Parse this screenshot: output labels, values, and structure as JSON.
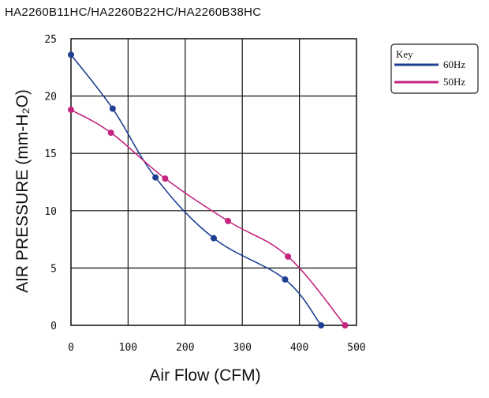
{
  "chart_data": {
    "type": "line",
    "title": "HA2260B11HC/HA2260B22HC/HA2260B38HC",
    "xlabel": "Air Flow (CFM)",
    "ylabel": "AIR PRESSURE (mm-H₂O)",
    "xlim": [
      0,
      500
    ],
    "ylim": [
      0,
      25
    ],
    "x_ticks": [
      "0",
      "100",
      "200",
      "300",
      "400",
      "500"
    ],
    "y_ticks": [
      "0",
      "5",
      "10",
      "15",
      "20",
      "25"
    ],
    "grid": true,
    "legend": {
      "title": "Key",
      "position": "top-right"
    },
    "series": [
      {
        "name": "60Hz",
        "color": "#1f3f93",
        "points": [
          [
            0,
            23.6
          ],
          [
            73,
            18.9
          ],
          [
            148,
            12.9
          ],
          [
            250,
            7.6
          ],
          [
            375,
            4.0
          ],
          [
            438,
            0.0
          ]
        ]
      },
      {
        "name": "50Hz",
        "color": "#c4267f",
        "points": [
          [
            0,
            18.8
          ],
          [
            70,
            16.8
          ],
          [
            165,
            12.8
          ],
          [
            275,
            9.1
          ],
          [
            380,
            6.0
          ],
          [
            480,
            0.0
          ]
        ]
      }
    ]
  }
}
